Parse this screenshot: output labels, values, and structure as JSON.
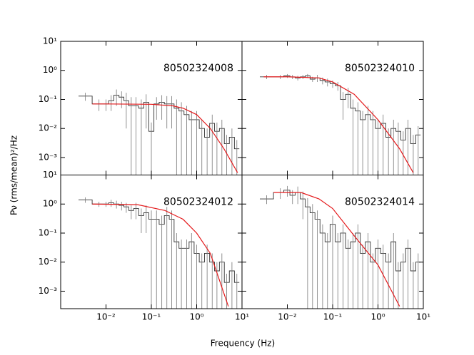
{
  "chart_data": {
    "type": "step",
    "xlabel": "Frequency (Hz)",
    "ylabel": "Pν (rms/mean)²/Hz",
    "log_x": true,
    "log_y": true,
    "xlim": [
      0.001,
      10
    ],
    "ylim": [
      0.00025,
      10
    ],
    "xticks": [
      {
        "value": 0.01,
        "label": "10⁻²"
      },
      {
        "value": 0.1,
        "label": "10⁻¹"
      },
      {
        "value": 1,
        "label": "10⁰"
      },
      {
        "value": 10,
        "label": "10¹"
      }
    ],
    "yticks": [
      {
        "value": 10,
        "label": "10¹"
      },
      {
        "value": 1,
        "label": "10⁰"
      },
      {
        "value": 0.1,
        "label": "10⁻¹"
      },
      {
        "value": 0.01,
        "label": "10⁻²"
      },
      {
        "value": 0.001,
        "label": "10⁻³"
      }
    ],
    "color": "#333333",
    "error_color": "#777777",
    "model_color": "#e41a1c",
    "x": [
      0.0035,
      0.007,
      0.01,
      0.013,
      0.017,
      0.022,
      0.028,
      0.036,
      0.046,
      0.06,
      0.077,
      0.1,
      0.13,
      0.17,
      0.22,
      0.28,
      0.36,
      0.46,
      0.6,
      0.77,
      1.0,
      1.3,
      1.7,
      2.2,
      2.8,
      3.6,
      4.6,
      6,
      7.7
    ],
    "panels": [
      {
        "title": "80502324008",
        "values": [
          0.13,
          0.07,
          0.07,
          0.09,
          0.14,
          0.12,
          0.09,
          0.06,
          0.06,
          0.05,
          0.08,
          0.008,
          0.07,
          0.08,
          0.07,
          0.07,
          0.05,
          0.04,
          0.03,
          0.02,
          0.02,
          0.01,
          0.005,
          0.015,
          0.008,
          0.01,
          0.003,
          0.005,
          0.002
        ],
        "errors": [
          0.04,
          0.03,
          0.03,
          0.05,
          0.08,
          0.07,
          0.08,
          0.06,
          0.06,
          0.05,
          0.07,
          0.008,
          0.05,
          0.06,
          0.06,
          0.06,
          0.05,
          0.04,
          0.03,
          0.02,
          0.02,
          0.01,
          0.005,
          0.015,
          0.008,
          0.01,
          0.003,
          0.005,
          0.002
        ],
        "model_x": [
          0.005,
          0.01,
          0.1,
          0.3,
          0.5,
          1,
          2,
          4,
          8
        ],
        "model_values": [
          0.07,
          0.07,
          0.068,
          0.06,
          0.05,
          0.03,
          0.01,
          0.002,
          0.0003
        ]
      },
      {
        "title": "80502324010",
        "values": [
          0.6,
          0.6,
          0.65,
          0.6,
          0.55,
          0.6,
          0.65,
          0.5,
          0.55,
          0.45,
          0.4,
          0.35,
          0.3,
          0.1,
          0.15,
          0.05,
          0.04,
          0.02,
          0.03,
          0.02,
          0.01,
          0.015,
          0.005,
          0.01,
          0.008,
          0.004,
          0.01,
          0.003,
          0.006
        ],
        "errors": [
          0.1,
          0.1,
          0.1,
          0.1,
          0.1,
          0.1,
          0.1,
          0.1,
          0.15,
          0.12,
          0.12,
          0.1,
          0.1,
          0.08,
          0.1,
          0.05,
          0.04,
          0.02,
          0.03,
          0.02,
          0.01,
          0.015,
          0.005,
          0.01,
          0.008,
          0.004,
          0.01,
          0.003,
          0.006
        ],
        "model_x": [
          0.003,
          0.01,
          0.05,
          0.1,
          0.3,
          1,
          3,
          6
        ],
        "model_values": [
          0.6,
          0.6,
          0.55,
          0.4,
          0.15,
          0.02,
          0.002,
          0.0003
        ]
      },
      {
        "title": "80502324012",
        "values": [
          1.4,
          1.0,
          1.0,
          1.1,
          1.0,
          0.9,
          0.8,
          0.6,
          0.7,
          0.4,
          0.5,
          0.3,
          0.3,
          0.2,
          0.4,
          0.3,
          0.05,
          0.03,
          0.03,
          0.05,
          0.02,
          0.01,
          0.02,
          0.01,
          0.005,
          0.01,
          0.002,
          0.005,
          0.002
        ],
        "errors": [
          0.3,
          0.2,
          0.2,
          0.3,
          0.3,
          0.3,
          0.3,
          0.3,
          0.4,
          0.3,
          0.4,
          0.3,
          0.3,
          0.2,
          0.4,
          0.3,
          0.05,
          0.03,
          0.03,
          0.05,
          0.02,
          0.01,
          0.02,
          0.01,
          0.005,
          0.01,
          0.002,
          0.005,
          0.002
        ],
        "model_x": [
          0.005,
          0.05,
          0.2,
          0.5,
          1,
          2,
          5
        ],
        "model_values": [
          1.0,
          0.95,
          0.6,
          0.3,
          0.1,
          0.02,
          0.0003
        ]
      },
      {
        "title": "80502324014",
        "values": [
          1.5,
          2.5,
          3,
          2,
          2.5,
          1.5,
          0.8,
          0.5,
          0.3,
          0.1,
          0.05,
          0.2,
          0.05,
          0.1,
          0.03,
          0.05,
          0.1,
          0.02,
          0.05,
          0.01,
          0.03,
          0.02,
          0.01,
          0.05,
          0.005,
          0.01,
          0.03,
          0.005,
          0.01
        ],
        "errors": [
          0.5,
          1.0,
          1.2,
          1.0,
          1.5,
          1.2,
          0.8,
          0.5,
          0.3,
          0.1,
          0.05,
          0.2,
          0.05,
          0.1,
          0.03,
          0.05,
          0.1,
          0.02,
          0.05,
          0.01,
          0.03,
          0.02,
          0.01,
          0.05,
          0.005,
          0.01,
          0.03,
          0.005,
          0.01
        ],
        "model_x": [
          0.005,
          0.02,
          0.05,
          0.1,
          0.3,
          1,
          3
        ],
        "model_values": [
          2.5,
          2.5,
          1.5,
          0.7,
          0.08,
          0.008,
          0.0003
        ]
      }
    ]
  }
}
